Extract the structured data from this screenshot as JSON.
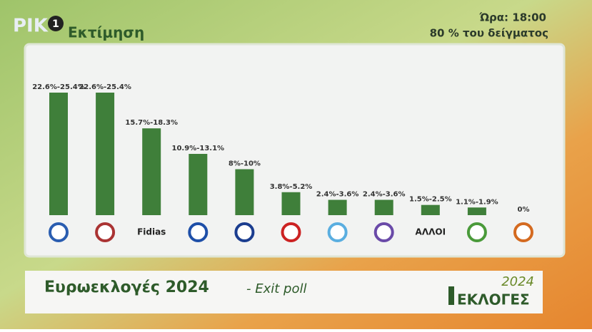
{
  "header": {
    "channel": "ΡΙΚ",
    "channel_number": "1",
    "time": "Ώρα: 18:00",
    "sample": "80 % του δείγματος"
  },
  "footer": {
    "title": "Ευρωεκλογές 2024",
    "subtitle": "- Exit poll",
    "logo_year": "2024",
    "logo_text": "ΕΚΛΟΓΕΣ"
  },
  "chart_data": {
    "type": "bar",
    "title": "Εκτίμηση",
    "categories": [
      null,
      null,
      "Fidias",
      null,
      null,
      null,
      null,
      null,
      "ΑΛΛΟΙ",
      null,
      null
    ],
    "values": [
      24,
      24,
      17,
      12,
      9,
      4.5,
      3,
      3,
      2,
      1.5,
      0
    ],
    "value_labels": [
      "22.6%-25.4%",
      "22.6%-25.4%",
      "15.7%-18.3%",
      "10.9%-13.1%",
      "8%-10%",
      "3.8%-5.2%",
      "2.4%-3.6%",
      "2.4%-3.6%",
      "1.5%-2.5%",
      "1.1%-1.9%",
      "0%"
    ],
    "color": "#3f7f3a"
  }
}
